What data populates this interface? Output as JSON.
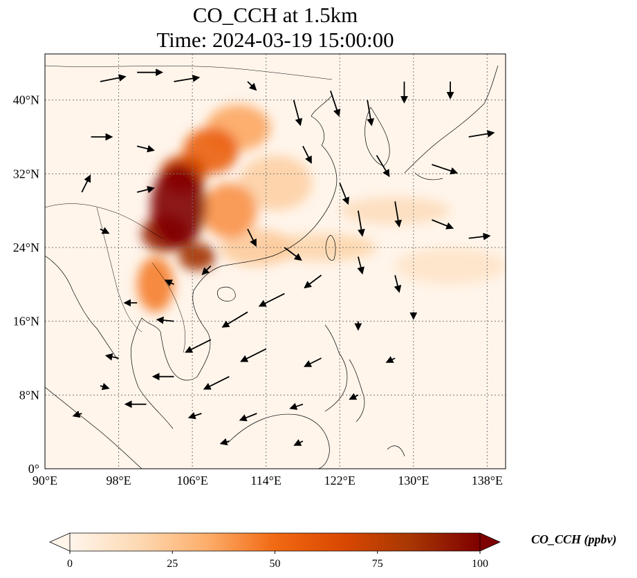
{
  "title": {
    "line1": "CO_CCH at 1.5km",
    "line2": "Time: 2024-03-19 15:00:00"
  },
  "map": {
    "lon_range": [
      90,
      140
    ],
    "lat_range": [
      0,
      45
    ],
    "lon_ticks": [
      {
        "value": 90,
        "label": "90°E"
      },
      {
        "value": 98,
        "label": "98°E"
      },
      {
        "value": 106,
        "label": "106°E"
      },
      {
        "value": 114,
        "label": "114°E"
      },
      {
        "value": 122,
        "label": "122°E"
      },
      {
        "value": 130,
        "label": "130°E"
      },
      {
        "value": 138,
        "label": "138°E"
      }
    ],
    "lat_ticks": [
      {
        "value": 0,
        "label": "0°"
      },
      {
        "value": 8,
        "label": "8°N"
      },
      {
        "value": 16,
        "label": "16°N"
      },
      {
        "value": 24,
        "label": "24°N"
      },
      {
        "value": 32,
        "label": "32°N"
      },
      {
        "value": 40,
        "label": "40°N"
      }
    ],
    "gridlines": true,
    "background_color": "#fff5eb",
    "co_plumes": [
      {
        "lon": 104.5,
        "lat": 28.5,
        "rlon": 3.0,
        "rlat": 4.5,
        "value": 100
      },
      {
        "lon": 103.0,
        "lat": 25.5,
        "rlon": 2.5,
        "rlat": 2.0,
        "value": 90
      },
      {
        "lon": 106.5,
        "lat": 23.0,
        "rlon": 2.0,
        "rlat": 1.5,
        "value": 85
      },
      {
        "lon": 105.0,
        "lat": 32.0,
        "rlon": 2.5,
        "rlat": 2.0,
        "value": 70
      },
      {
        "lon": 108.0,
        "lat": 34.5,
        "rlon": 3.0,
        "rlat": 2.5,
        "value": 55
      },
      {
        "lon": 111.0,
        "lat": 37.0,
        "rlon": 3.5,
        "rlat": 2.5,
        "value": 35
      },
      {
        "lon": 110.0,
        "lat": 28.0,
        "rlon": 3.0,
        "rlat": 3.0,
        "value": 40
      },
      {
        "lon": 102.0,
        "lat": 20.0,
        "rlon": 2.0,
        "rlat": 3.0,
        "value": 45
      },
      {
        "lon": 115.0,
        "lat": 31.0,
        "rlon": 4.0,
        "rlat": 3.0,
        "value": 20
      },
      {
        "lon": 120.0,
        "lat": 24.0,
        "rlon": 6.0,
        "rlat": 1.5,
        "value": 18
      },
      {
        "lon": 128.0,
        "lat": 28.0,
        "rlon": 6.0,
        "rlat": 1.5,
        "value": 14
      },
      {
        "lon": 134.0,
        "lat": 22.0,
        "rlon": 6.0,
        "rlat": 2.0,
        "value": 10
      },
      {
        "lon": 113.0,
        "lat": 24.0,
        "rlon": 4.0,
        "rlat": 2.0,
        "value": 22
      }
    ],
    "wind_vectors": [
      {
        "lon": 96,
        "lat": 42,
        "u": 3,
        "v": 0.6
      },
      {
        "lon": 100,
        "lat": 43,
        "u": 3,
        "v": 0
      },
      {
        "lon": 104,
        "lat": 42,
        "u": 3,
        "v": 0.5
      },
      {
        "lon": 112,
        "lat": 42,
        "u": 1,
        "v": -1
      },
      {
        "lon": 117,
        "lat": 40,
        "u": 0.8,
        "v": -3
      },
      {
        "lon": 121,
        "lat": 41,
        "u": 1,
        "v": -3
      },
      {
        "lon": 125,
        "lat": 40,
        "u": 0.5,
        "v": -3
      },
      {
        "lon": 129,
        "lat": 42,
        "u": 0,
        "v": -2.5
      },
      {
        "lon": 134,
        "lat": 42,
        "u": 0,
        "v": -2
      },
      {
        "lon": 136,
        "lat": 36,
        "u": 3,
        "v": 0.5
      },
      {
        "lon": 132,
        "lat": 33,
        "u": 3,
        "v": -1
      },
      {
        "lon": 126,
        "lat": 34,
        "u": 1.5,
        "v": -2.5
      },
      {
        "lon": 122,
        "lat": 31,
        "u": 1,
        "v": -2.5
      },
      {
        "lon": 118,
        "lat": 35,
        "u": 1,
        "v": -2
      },
      {
        "lon": 128,
        "lat": 29,
        "u": 0.5,
        "v": -3
      },
      {
        "lon": 124,
        "lat": 28,
        "u": 0.5,
        "v": -3
      },
      {
        "lon": 132,
        "lat": 27,
        "u": 2.5,
        "v": -1
      },
      {
        "lon": 136,
        "lat": 25,
        "u": 2.5,
        "v": 0.3
      },
      {
        "lon": 95,
        "lat": 36,
        "u": 2.5,
        "v": 0
      },
      {
        "lon": 100,
        "lat": 35,
        "u": 2,
        "v": -0.5
      },
      {
        "lon": 94,
        "lat": 30,
        "u": 1,
        "v": 2
      },
      {
        "lon": 100,
        "lat": 30,
        "u": 2,
        "v": 0.5
      },
      {
        "lon": 96,
        "lat": 26,
        "u": 1,
        "v": -0.5
      },
      {
        "lon": 112,
        "lat": 26,
        "u": 1,
        "v": -2
      },
      {
        "lon": 116,
        "lat": 24,
        "u": 2,
        "v": -1.5
      },
      {
        "lon": 120,
        "lat": 21,
        "u": -2,
        "v": -1.5
      },
      {
        "lon": 124,
        "lat": 23,
        "u": 0.5,
        "v": -2
      },
      {
        "lon": 128,
        "lat": 21,
        "u": 0.5,
        "v": -2
      },
      {
        "lon": 116,
        "lat": 19,
        "u": -3,
        "v": -1.5
      },
      {
        "lon": 112,
        "lat": 17,
        "u": -3,
        "v": -1.8
      },
      {
        "lon": 108,
        "lat": 14,
        "u": -3,
        "v": -1.5
      },
      {
        "lon": 114,
        "lat": 13,
        "u": -3,
        "v": -1.5
      },
      {
        "lon": 120,
        "lat": 12,
        "u": -2,
        "v": -1
      },
      {
        "lon": 110,
        "lat": 10,
        "u": -3,
        "v": -1.5
      },
      {
        "lon": 104,
        "lat": 10,
        "u": -2.5,
        "v": 0
      },
      {
        "lon": 98,
        "lat": 12,
        "u": -1.5,
        "v": 0.3
      },
      {
        "lon": 96,
        "lat": 9,
        "u": 1,
        "v": -0.3
      },
      {
        "lon": 101,
        "lat": 7,
        "u": -2.5,
        "v": 0
      },
      {
        "lon": 94,
        "lat": 6,
        "u": -1,
        "v": -0.3
      },
      {
        "lon": 107,
        "lat": 6,
        "u": -1.5,
        "v": -0.5
      },
      {
        "lon": 113,
        "lat": 6,
        "u": -2,
        "v": -0.8
      },
      {
        "lon": 118,
        "lat": 7,
        "u": -1.5,
        "v": -0.5
      },
      {
        "lon": 124,
        "lat": 8,
        "u": -1,
        "v": -0.5
      },
      {
        "lon": 128,
        "lat": 12,
        "u": -1,
        "v": -0.5
      },
      {
        "lon": 110,
        "lat": 3,
        "u": -1,
        "v": -0.3
      },
      {
        "lon": 118,
        "lat": 3,
        "u": -1,
        "v": -0.5
      },
      {
        "lon": 100,
        "lat": 18,
        "u": -1.5,
        "v": 0
      },
      {
        "lon": 104,
        "lat": 20,
        "u": -1,
        "v": 0.5
      },
      {
        "lon": 108,
        "lat": 22,
        "u": -1,
        "v": -1
      },
      {
        "lon": 104,
        "lat": 16,
        "u": -2,
        "v": 0.2
      },
      {
        "lon": 124,
        "lat": 16,
        "u": 0,
        "v": -1
      },
      {
        "lon": 130,
        "lat": 17,
        "u": 0,
        "v": -0.8
      }
    ]
  },
  "colorbar": {
    "label": "CO_CCH (ppbv)",
    "min": 0,
    "max": 100,
    "ticks": [
      {
        "value": 0,
        "label": "0"
      },
      {
        "value": 25,
        "label": "25"
      },
      {
        "value": 50,
        "label": "50"
      },
      {
        "value": 75,
        "label": "75"
      },
      {
        "value": 100,
        "label": "100"
      }
    ],
    "colors": [
      "#fff5eb",
      "#fdd9b3",
      "#fdae6b",
      "#f16913",
      "#d94801",
      "#a63603",
      "#7f0000"
    ],
    "extend": "both"
  }
}
